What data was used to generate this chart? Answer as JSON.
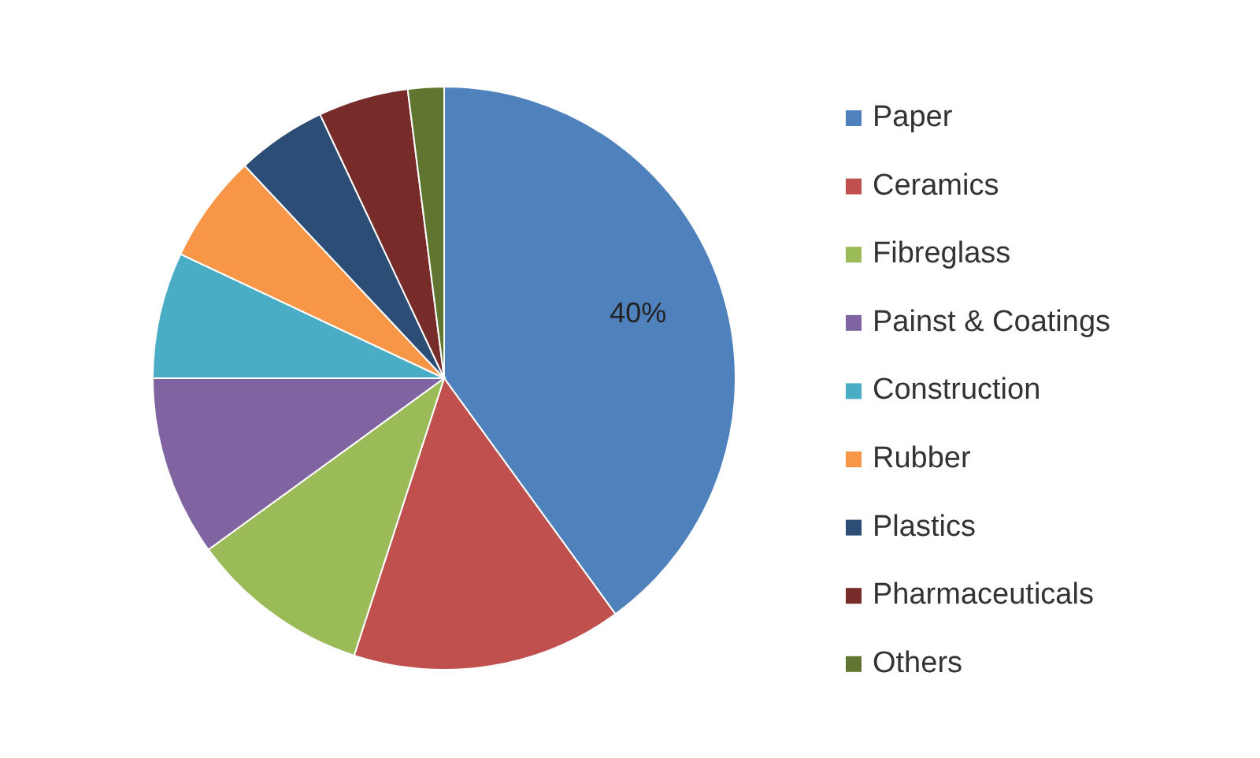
{
  "chart_data": {
    "type": "pie",
    "categories": [
      "Paper",
      "Ceramics",
      "Fibreglass",
      "Painst & Coatings",
      "Construction",
      "Rubber",
      "Plastics",
      "Pharmaceuticals",
      "Others"
    ],
    "values": [
      40,
      15,
      10,
      10,
      7,
      6,
      5,
      5,
      2
    ],
    "colors": [
      "#4f81bd",
      "#c0504d",
      "#9bbb59",
      "#8064a2",
      "#4bacc6",
      "#f79646",
      "#2c4d75",
      "#772c2a",
      "#5f7530"
    ],
    "value_labels": [
      "40%",
      null,
      null,
      null,
      null,
      null,
      null,
      null,
      null
    ],
    "legend": "right"
  }
}
